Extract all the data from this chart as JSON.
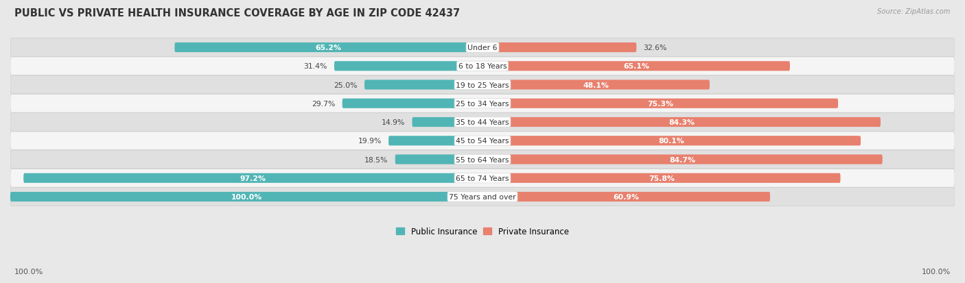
{
  "title": "PUBLIC VS PRIVATE HEALTH INSURANCE COVERAGE BY AGE IN ZIP CODE 42437",
  "source": "Source: ZipAtlas.com",
  "categories": [
    "Under 6",
    "6 to 18 Years",
    "19 to 25 Years",
    "25 to 34 Years",
    "35 to 44 Years",
    "45 to 54 Years",
    "55 to 64 Years",
    "65 to 74 Years",
    "75 Years and over"
  ],
  "public_values": [
    65.2,
    31.4,
    25.0,
    29.7,
    14.9,
    19.9,
    18.5,
    97.2,
    100.0
  ],
  "private_values": [
    32.6,
    65.1,
    48.1,
    75.3,
    84.3,
    80.1,
    84.7,
    75.8,
    60.9
  ],
  "public_color": "#52b5b5",
  "private_color": "#e8806e",
  "public_color_light": "#a8d8d8",
  "private_color_light": "#f0b8aa",
  "background_color": "#e8e8e8",
  "row_bg_odd": "#f5f5f5",
  "row_bg_even": "#e0e0e0",
  "title_fontsize": 10.5,
  "bar_height": 0.52,
  "max_value": 100.0,
  "xlim_left": -100,
  "xlim_right": 100
}
